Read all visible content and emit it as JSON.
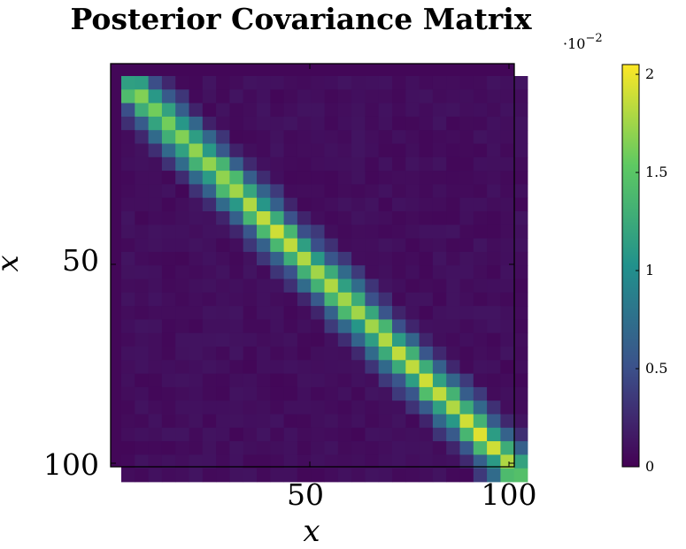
{
  "chart_data": {
    "type": "heatmap",
    "title": "Posterior Covariance Matrix",
    "xlabel": "x",
    "ylabel": "x",
    "size": 100,
    "grid_cells": 30,
    "xticks": [
      "50",
      "100"
    ],
    "yticks": [
      "50",
      "100"
    ],
    "xtick_values": [
      50,
      100
    ],
    "ytick_values": [
      50,
      100
    ],
    "colorbar": {
      "ticks": [
        "0",
        "0.5",
        "1",
        "1.5",
        "2"
      ],
      "tick_values": [
        0,
        0.5,
        1,
        1.5,
        2
      ],
      "range": [
        0,
        2.05
      ],
      "multiplier_text": "·10",
      "multiplier_exponent": "−2"
    },
    "diagonal_values_e2": [
      1.15,
      1.65,
      1.6,
      1.6,
      1.65,
      1.7,
      1.7,
      1.7,
      1.75,
      1.8,
      1.85,
      1.9,
      1.85,
      1.8,
      1.75,
      1.8,
      1.75,
      1.75,
      1.75,
      1.8,
      1.85,
      1.85,
      1.9,
      1.85,
      1.8,
      1.9,
      1.95,
      1.9,
      1.8,
      1.45
    ],
    "offdiag1_e2": 1.25,
    "offdiag2_e2": 0.6,
    "offdiag3_e2": 0.28,
    "background_e2": 0.08,
    "colormap": [
      "#440154",
      "#3b528b",
      "#21918c",
      "#5ec962",
      "#fde725"
    ]
  }
}
